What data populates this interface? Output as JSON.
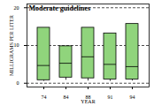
{
  "chart_data": {
    "type": "box",
    "title": "Moderate guidelines",
    "x_label": "YEAR",
    "y_label": "MILLIGRAMS PER LITER",
    "categories": [
      "74",
      "84",
      "88",
      "91",
      "94"
    ],
    "low": [
      0.5,
      0.8,
      0.6,
      0.5,
      0.6
    ],
    "q1": [
      0.8,
      1.5,
      1.3,
      1.0,
      1.0
    ],
    "median": [
      4.7,
      5.3,
      7.0,
      5.0,
      4.4
    ],
    "q3": [
      14.7,
      9.8,
      14.7,
      13.2,
      15.7
    ],
    "high": [
      14.7,
      9.8,
      14.7,
      13.2,
      15.7
    ],
    "color": "#90d47c",
    "ylim": [
      -1,
      21
    ],
    "yticks": [
      0,
      10,
      20
    ],
    "grid": true
  }
}
